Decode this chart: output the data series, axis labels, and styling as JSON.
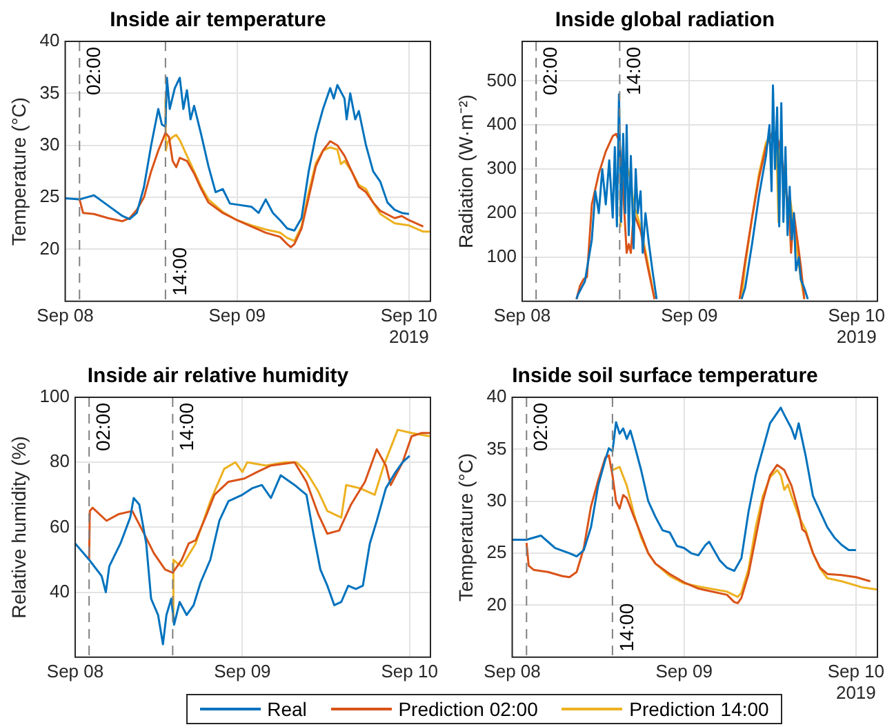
{
  "chart_data": [
    {
      "type": "line",
      "title": "Inside air temperature",
      "ylabel": "Temperature (°C)",
      "xlim": [
        "2019-09-08T00:00",
        "2019-09-10T03:00"
      ],
      "xticks": [
        {
          "value": "2019-09-08",
          "label": "Sep 08"
        },
        {
          "value": "2019-09-09",
          "label": "Sep 09"
        },
        {
          "value": "2019-09-10",
          "label": "Sep 10"
        }
      ],
      "ylim": [
        15,
        40
      ],
      "yticks": [
        20,
        25,
        30,
        35,
        40
      ],
      "grid": true,
      "ref_lines": [
        {
          "axis": "x",
          "value": "2019-09-08T02:00",
          "label": "02:00",
          "color": "#808080",
          "line_style": "dashed"
        },
        {
          "axis": "x",
          "value": "2019-09-08T14:00",
          "label": "14:00",
          "color": "#808080",
          "line_style": "dashed"
        }
      ],
      "annotations": [
        "2019"
      ],
      "series": [
        {
          "color": "#0072bd",
          "x": [
            "2019-09-08T00:00",
            "2019-09-08T02:00",
            "2019-09-08T04:00",
            "2019-09-08T06:00",
            "2019-09-08T08:00",
            "2019-09-08T09:00",
            "2019-09-08T10:00",
            "2019-09-08T11:00",
            "2019-09-08T12:00",
            "2019-09-08T13:00",
            "2019-09-08T13:30",
            "2019-09-08T14:00",
            "2019-09-08T14:12",
            "2019-09-08T14:36",
            "2019-09-08T15:18",
            "2019-09-08T16:00",
            "2019-09-08T16:30",
            "2019-09-08T17:00",
            "2019-09-08T17:30",
            "2019-09-08T18:00",
            "2019-09-08T19:00",
            "2019-09-08T20:00",
            "2019-09-08T21:00",
            "2019-09-08T22:00",
            "2019-09-08T23:00",
            "2019-09-09T00:00",
            "2019-09-09T02:00",
            "2019-09-09T03:00",
            "2019-09-09T04:00",
            "2019-09-09T05:00",
            "2019-09-09T06:00",
            "2019-09-09T07:00",
            "2019-09-09T08:00",
            "2019-09-09T09:00",
            "2019-09-09T10:00",
            "2019-09-09T11:00",
            "2019-09-09T12:00",
            "2019-09-09T13:00",
            "2019-09-09T13:30",
            "2019-09-09T14:00",
            "2019-09-09T15:00",
            "2019-09-09T15:18",
            "2019-09-09T15:48",
            "2019-09-09T16:30",
            "2019-09-09T17:00",
            "2019-09-09T18:00",
            "2019-09-09T19:00",
            "2019-09-09T20:00",
            "2019-09-09T21:00",
            "2019-09-09T22:00",
            "2019-09-09T23:00",
            "2019-09-10T00:00"
          ],
          "values": [
            24.9,
            24.8,
            25.2,
            24.2,
            23.2,
            22.9,
            23.5,
            26,
            30,
            33.5,
            32,
            31.8,
            36.5,
            33.5,
            35.5,
            36.5,
            33.5,
            35.3,
            32.5,
            33.8,
            31,
            28,
            25.5,
            25.8,
            24.4,
            24.3,
            24.1,
            23.5,
            24.8,
            23.5,
            22.8,
            22,
            21.8,
            23,
            27.5,
            31,
            33.5,
            35.5,
            34.5,
            35.8,
            34.5,
            32.5,
            35,
            32.5,
            33.3,
            30,
            27.5,
            26.5,
            24.5,
            23.8,
            23.5,
            23.4
          ]
        },
        {
          "color": "#d95319",
          "x": [
            "2019-09-08T02:00",
            "2019-09-08T02:30",
            "2019-09-08T04:00",
            "2019-09-08T06:00",
            "2019-09-08T08:00",
            "2019-09-08T09:00",
            "2019-09-08T10:00",
            "2019-09-08T11:00",
            "2019-09-08T12:00",
            "2019-09-08T13:00",
            "2019-09-08T14:00",
            "2019-09-08T14:30",
            "2019-09-08T15:00",
            "2019-09-08T15:30",
            "2019-09-08T16:00",
            "2019-09-08T17:00",
            "2019-09-08T18:00",
            "2019-09-08T19:00",
            "2019-09-08T20:00",
            "2019-09-08T22:00",
            "2019-09-09T00:00",
            "2019-09-09T02:00",
            "2019-09-09T04:00",
            "2019-09-09T06:00",
            "2019-09-09T07:00",
            "2019-09-09T07:30",
            "2019-09-09T08:00",
            "2019-09-09T09:00",
            "2019-09-09T10:00",
            "2019-09-09T11:00",
            "2019-09-09T12:00",
            "2019-09-09T13:00",
            "2019-09-09T14:00",
            "2019-09-09T15:00",
            "2019-09-09T16:00",
            "2019-09-09T17:00",
            "2019-09-09T18:00",
            "2019-09-09T19:00",
            "2019-09-09T20:00",
            "2019-09-09T22:00",
            "2019-09-09T23:00",
            "2019-09-10T00:00",
            "2019-09-10T02:00"
          ],
          "values": [
            24.8,
            23.5,
            23.4,
            23,
            22.7,
            23,
            23.8,
            25,
            27.5,
            29.5,
            31.2,
            30.8,
            28.5,
            27.9,
            28.8,
            28.5,
            27.3,
            25.8,
            24.5,
            23.5,
            22.8,
            22.2,
            21.6,
            21.2,
            20.5,
            20.2,
            20.5,
            22,
            25,
            28,
            29.5,
            30.4,
            30,
            29,
            27.5,
            26,
            25.5,
            24.5,
            23.7,
            23,
            23.2,
            22.8,
            22.2
          ]
        },
        {
          "color": "#edb120",
          "x": [
            "2019-09-08T14:00",
            "2019-09-08T14:03",
            "2019-09-08T14:18",
            "2019-09-08T15:00",
            "2019-09-08T15:30",
            "2019-09-08T16:00",
            "2019-09-08T17:00",
            "2019-09-08T18:00",
            "2019-09-08T19:00",
            "2019-09-08T20:00",
            "2019-09-08T22:00",
            "2019-09-09T00:00",
            "2019-09-09T02:00",
            "2019-09-09T04:00",
            "2019-09-09T06:00",
            "2019-09-09T07:00",
            "2019-09-09T08:00",
            "2019-09-09T09:00",
            "2019-09-09T10:00",
            "2019-09-09T11:00",
            "2019-09-09T12:00",
            "2019-09-09T13:00",
            "2019-09-09T14:00",
            "2019-09-09T14:30",
            "2019-09-09T15:00",
            "2019-09-09T16:00",
            "2019-09-09T17:00",
            "2019-09-09T18:00",
            "2019-09-09T19:00",
            "2019-09-09T20:00",
            "2019-09-09T22:00",
            "2019-09-10T00:00",
            "2019-09-10T02:00",
            "2019-09-10T03:00"
          ],
          "values": [
            34.5,
            29.5,
            30.3,
            30.8,
            31,
            30.5,
            29,
            27.5,
            26,
            24.8,
            23.6,
            22.8,
            22.3,
            21.9,
            21.6,
            21.1,
            20.8,
            22.2,
            25.5,
            28.3,
            29.5,
            29.8,
            29.6,
            28.2,
            28.5,
            27.5,
            26.2,
            25.8,
            24.5,
            23.4,
            22.5,
            22.3,
            21.7,
            21.7
          ]
        }
      ]
    },
    {
      "type": "line",
      "title": "Inside global radiation",
      "ylabel": "Radiation (W·m⁻²)",
      "xlim": [
        "2019-09-08T00:00",
        "2019-09-10T03:00"
      ],
      "xticks": [
        {
          "value": "2019-09-08",
          "label": "Sep 08"
        },
        {
          "value": "2019-09-09",
          "label": "Sep 09"
        },
        {
          "value": "2019-09-10",
          "label": "Sep 10"
        }
      ],
      "ylim": [
        0,
        590
      ],
      "yticks": [
        100,
        200,
        300,
        400,
        500
      ],
      "grid": true,
      "ref_lines": [
        {
          "axis": "x",
          "value": "2019-09-08T02:00",
          "label": "02:00",
          "color": "#808080",
          "line_style": "dashed"
        },
        {
          "axis": "x",
          "value": "2019-09-08T14:00",
          "label": "14:00",
          "color": "#808080",
          "line_style": "dashed"
        }
      ],
      "annotations": [
        "2019"
      ],
      "series": [
        {
          "color": "#0072bd",
          "x": [
            "2019-09-08T07:48",
            "2019-09-08T08:00",
            "2019-09-08T09:00",
            "2019-09-08T10:00",
            "2019-09-08T10:30",
            "2019-09-08T11:00",
            "2019-09-08T11:30",
            "2019-09-08T12:00",
            "2019-09-08T12:30",
            "2019-09-08T13:00",
            "2019-09-08T13:18",
            "2019-09-08T13:36",
            "2019-09-08T13:54",
            "2019-09-08T14:12",
            "2019-09-08T14:30",
            "2019-09-08T14:48",
            "2019-09-08T15:00",
            "2019-09-08T15:18",
            "2019-09-08T15:36",
            "2019-09-08T16:00",
            "2019-09-08T16:18",
            "2019-09-08T16:36",
            "2019-09-08T17:00",
            "2019-09-08T17:18",
            "2019-09-08T17:42",
            "2019-09-08T18:12",
            "2019-09-08T18:42",
            "2019-09-08T19:18",
            "2019-09-09T01:00",
            "2019-09-09T07:30",
            "2019-09-09T08:00",
            "2019-09-09T09:00",
            "2019-09-09T10:00",
            "2019-09-09T11:00",
            "2019-09-09T11:30",
            "2019-09-09T11:48",
            "2019-09-09T12:00",
            "2019-09-09T12:18",
            "2019-09-09T12:36",
            "2019-09-09T12:54",
            "2019-09-09T13:12",
            "2019-09-09T13:30",
            "2019-09-09T13:48",
            "2019-09-09T14:06",
            "2019-09-09T14:24",
            "2019-09-09T14:42",
            "2019-09-09T15:00",
            "2019-09-09T15:18",
            "2019-09-09T15:42",
            "2019-09-09T16:00",
            "2019-09-09T16:30",
            "2019-09-09T17:00"
          ],
          "values": [
            5,
            15,
            45,
            140,
            250,
            200,
            300,
            220,
            320,
            190,
            350,
            170,
            470,
            180,
            380,
            200,
            400,
            150,
            330,
            120,
            300,
            200,
            250,
            110,
            200,
            130,
            70,
            5,
            null,
            5,
            30,
            130,
            240,
            330,
            400,
            250,
            490,
            300,
            440,
            170,
            450,
            180,
            350,
            150,
            260,
            140,
            200,
            70,
            100,
            50,
            30,
            5
          ]
        },
        {
          "color": "#d95319",
          "x": [
            "2019-09-08T07:48",
            "2019-09-08T08:18",
            "2019-09-08T08:48",
            "2019-09-08T09:18",
            "2019-09-08T10:00",
            "2019-09-08T11:00",
            "2019-09-08T12:00",
            "2019-09-08T13:00",
            "2019-09-08T13:30",
            "2019-09-08T14:00",
            "2019-09-08T14:30",
            "2019-09-08T15:00",
            "2019-09-08T15:18",
            "2019-09-08T15:36",
            "2019-09-08T16:00",
            "2019-09-08T17:00",
            "2019-09-08T18:00",
            "2019-09-08T19:00",
            "2019-09-09T01:00",
            "2019-09-09T07:12",
            "2019-09-09T08:00",
            "2019-09-09T09:00",
            "2019-09-09T10:00",
            "2019-09-09T11:00",
            "2019-09-09T12:00",
            "2019-09-09T12:30",
            "2019-09-09T13:00",
            "2019-09-09T13:30",
            "2019-09-09T14:00",
            "2019-09-09T14:18",
            "2019-09-09T14:36",
            "2019-09-09T15:00",
            "2019-09-09T16:00",
            "2019-09-09T16:30"
          ],
          "values": [
            5,
            35,
            50,
            55,
            220,
            290,
            340,
            375,
            380,
            360,
            250,
            110,
            130,
            110,
            200,
            160,
            80,
            5,
            null,
            5,
            90,
            190,
            280,
            350,
            385,
            380,
            350,
            300,
            240,
            220,
            110,
            200,
            80,
            5
          ]
        },
        {
          "color": "#edb120",
          "x": [
            "2019-09-08T14:00",
            "2019-09-08T14:06",
            "2019-09-08T14:18",
            "2019-09-08T15:00",
            "2019-09-08T15:30",
            "2019-09-08T16:00",
            "2019-09-08T17:00",
            "2019-09-08T18:00",
            "2019-09-08T19:00",
            "2019-09-09T01:00",
            "2019-09-09T07:30",
            "2019-09-09T08:00",
            "2019-09-09T09:00",
            "2019-09-09T10:00",
            "2019-09-09T11:00",
            "2019-09-09T12:00",
            "2019-09-09T12:30",
            "2019-09-09T12:48",
            "2019-09-09T13:00",
            "2019-09-09T13:30",
            "2019-09-09T14:00",
            "2019-09-09T14:30",
            "2019-09-09T15:00",
            "2019-09-09T16:00",
            "2019-09-09T16:30"
          ],
          "values": [
            170,
            330,
            310,
            310,
            280,
            220,
            170,
            90,
            5,
            null,
            5,
            80,
            190,
            290,
            360,
            385,
            350,
            180,
            350,
            300,
            230,
            230,
            170,
            50,
            5
          ]
        }
      ]
    },
    {
      "type": "line",
      "title": "Inside air relative humidity",
      "ylabel": "Relative humidity (%)",
      "xlim": [
        "2019-09-08T00:00",
        "2019-09-10T03:00"
      ],
      "xticks": [
        {
          "value": "2019-09-08",
          "label": "Sep 08"
        },
        {
          "value": "2019-09-09",
          "label": "Sep 09"
        },
        {
          "value": "2019-09-10",
          "label": "Sep 10"
        }
      ],
      "ylim": [
        20,
        100
      ],
      "yticks": [
        40,
        60,
        80,
        100
      ],
      "grid": true,
      "legend": "bottom",
      "ref_lines": [
        {
          "axis": "x",
          "value": "2019-09-08T02:00",
          "label": "02:00",
          "color": "#808080",
          "line_style": "dashed"
        },
        {
          "axis": "x",
          "value": "2019-09-08T14:00",
          "label": "14:00",
          "color": "#808080",
          "line_style": "dashed"
        }
      ],
      "series": [
        {
          "name": "Real",
          "color": "#0072bd",
          "x": [
            "2019-09-08T00:00",
            "2019-09-08T02:00",
            "2019-09-08T03:48",
            "2019-09-08T04:24",
            "2019-09-08T04:54",
            "2019-09-08T06:30",
            "2019-09-08T07:54",
            "2019-09-08T08:24",
            "2019-09-08T09:12",
            "2019-09-08T10:12",
            "2019-09-08T10:54",
            "2019-09-08T11:54",
            "2019-09-08T12:36",
            "2019-09-08T13:06",
            "2019-09-08T13:48",
            "2019-09-08T14:12",
            "2019-09-08T15:00",
            "2019-09-08T16:00",
            "2019-09-08T17:00",
            "2019-09-08T18:00",
            "2019-09-08T19:24",
            "2019-09-08T20:42",
            "2019-09-08T22:00",
            "2019-09-09T00:00",
            "2019-09-09T01:24",
            "2019-09-09T02:48",
            "2019-09-09T04:06",
            "2019-09-09T05:30",
            "2019-09-09T07:30",
            "2019-09-09T09:12",
            "2019-09-09T10:12",
            "2019-09-09T11:12",
            "2019-09-09T12:12",
            "2019-09-09T13:12",
            "2019-09-09T14:12",
            "2019-09-09T15:12",
            "2019-09-09T16:18",
            "2019-09-09T17:18",
            "2019-09-09T18:18",
            "2019-09-09T19:18",
            "2019-09-09T20:36",
            "2019-09-09T22:00",
            "2019-09-09T23:00",
            "2019-09-10T00:00"
          ],
          "values": [
            55,
            50,
            45,
            40,
            48,
            55,
            63,
            69,
            67,
            55,
            38,
            33,
            24,
            33,
            38,
            30,
            37,
            33,
            36,
            43,
            50,
            62,
            68,
            70,
            72,
            73,
            69,
            76,
            73,
            70,
            58,
            47,
            42,
            36,
            37,
            42,
            41,
            42,
            55,
            62,
            72,
            77,
            80,
            82
          ]
        },
        {
          "name": "Prediction 02:00",
          "color": "#d95319",
          "x": [
            "2019-09-08T02:00",
            "2019-09-08T02:06",
            "2019-09-08T02:30",
            "2019-09-08T04:30",
            "2019-09-08T06:12",
            "2019-09-08T08:12",
            "2019-09-08T09:54",
            "2019-09-08T11:18",
            "2019-09-08T12:54",
            "2019-09-08T14:00",
            "2019-09-08T15:18",
            "2019-09-08T16:18",
            "2019-09-08T17:18",
            "2019-09-08T18:42",
            "2019-09-08T20:00",
            "2019-09-08T22:00",
            "2019-09-09T00:18",
            "2019-09-09T02:06",
            "2019-09-09T04:06",
            "2019-09-09T07:30",
            "2019-09-09T09:12",
            "2019-09-09T10:54",
            "2019-09-09T12:12",
            "2019-09-09T13:54",
            "2019-09-09T15:36",
            "2019-09-09T17:36",
            "2019-09-09T19:18",
            "2019-09-09T20:36",
            "2019-09-09T21:18",
            "2019-09-09T23:00",
            "2019-09-10T00:18",
            "2019-09-10T01:42",
            "2019-09-10T02:54"
          ],
          "values": [
            50,
            65,
            66,
            62,
            64,
            65,
            58,
            52,
            47,
            46,
            50,
            55,
            56,
            63,
            70,
            74,
            75,
            77,
            79,
            80,
            74,
            64,
            58,
            59,
            67,
            74,
            84,
            79,
            73,
            80,
            88,
            89,
            89
          ]
        },
        {
          "name": "Prediction 14:00",
          "color": "#edb120",
          "x": [
            "2019-09-08T14:00",
            "2019-09-08T14:06",
            "2019-09-08T14:36",
            "2019-09-08T15:18",
            "2019-09-08T17:18",
            "2019-09-08T19:24",
            "2019-09-08T21:24",
            "2019-09-08T23:00",
            "2019-09-09T00:00",
            "2019-09-09T00:42",
            "2019-09-09T03:24",
            "2019-09-09T06:06",
            "2019-09-09T07:48",
            "2019-09-09T09:12",
            "2019-09-09T10:54",
            "2019-09-09T12:12",
            "2019-09-09T14:12",
            "2019-09-09T14:54",
            "2019-09-09T16:54",
            "2019-09-09T19:00",
            "2019-09-09T20:18",
            "2019-09-09T22:18",
            "2019-09-10T00:18",
            "2019-09-10T02:54"
          ],
          "values": [
            31,
            50,
            49,
            48,
            55,
            68,
            78,
            80,
            77,
            80,
            79,
            80,
            80,
            77,
            71,
            65,
            63,
            73,
            72,
            70,
            79,
            90,
            89,
            88
          ]
        }
      ]
    },
    {
      "type": "line",
      "title": "Inside soil surface temperature",
      "ylabel": "Temperature (°C)",
      "xlim": [
        "2019-09-08T00:00",
        "2019-09-10T03:00"
      ],
      "xticks": [
        {
          "value": "2019-09-08",
          "label": "Sep 08"
        },
        {
          "value": "2019-09-09",
          "label": "Sep 09"
        },
        {
          "value": "2019-09-10",
          "label": "Sep 10"
        }
      ],
      "ylim": [
        15,
        40
      ],
      "yticks": [
        20,
        25,
        30,
        35,
        40
      ],
      "grid": true,
      "ref_lines": [
        {
          "axis": "x",
          "value": "2019-09-08T02:00",
          "label": "02:00",
          "color": "#808080",
          "line_style": "dashed"
        },
        {
          "axis": "x",
          "value": "2019-09-08T14:00",
          "label": "14:00",
          "color": "#808080",
          "line_style": "dashed"
        }
      ],
      "annotations": [
        "2019"
      ],
      "series": [
        {
          "color": "#0072bd",
          "x": [
            "2019-09-08T00:00",
            "2019-09-08T02:00",
            "2019-09-08T04:00",
            "2019-09-08T05:00",
            "2019-09-08T06:00",
            "2019-09-08T08:00",
            "2019-09-08T09:00",
            "2019-09-08T10:00",
            "2019-09-08T11:00",
            "2019-09-08T12:00",
            "2019-09-08T13:00",
            "2019-09-08T13:30",
            "2019-09-08T14:00",
            "2019-09-08T14:30",
            "2019-09-08T15:00",
            "2019-09-08T15:30",
            "2019-09-08T16:00",
            "2019-09-08T16:30",
            "2019-09-08T17:00",
            "2019-09-08T18:00",
            "2019-09-08T19:00",
            "2019-09-08T20:00",
            "2019-09-08T21:00",
            "2019-09-08T22:00",
            "2019-09-08T23:00",
            "2019-09-09T00:00",
            "2019-09-09T01:00",
            "2019-09-09T02:00",
            "2019-09-09T03:00",
            "2019-09-09T03:30",
            "2019-09-09T04:00",
            "2019-09-09T05:00",
            "2019-09-09T06:00",
            "2019-09-09T07:00",
            "2019-09-09T08:00",
            "2019-09-09T09:00",
            "2019-09-09T10:00",
            "2019-09-09T11:00",
            "2019-09-09T12:00",
            "2019-09-09T13:00",
            "2019-09-09T13:30",
            "2019-09-09T14:00",
            "2019-09-09T15:00",
            "2019-09-09T15:30",
            "2019-09-09T16:00",
            "2019-09-09T17:00",
            "2019-09-09T18:00",
            "2019-09-09T19:00",
            "2019-09-09T20:00",
            "2019-09-09T21:00",
            "2019-09-09T22:00",
            "2019-09-09T23:00",
            "2019-09-10T00:00"
          ],
          "values": [
            26.3,
            26.3,
            26.7,
            26.1,
            25.5,
            25,
            24.7,
            25.3,
            27.5,
            31.5,
            34,
            35.1,
            34.8,
            37.6,
            36.5,
            37,
            36,
            36.8,
            35.6,
            33,
            30,
            28.5,
            27.2,
            27,
            25.7,
            25.5,
            25,
            24.8,
            25.8,
            26.1,
            25.5,
            24.3,
            23.6,
            23.3,
            24.5,
            29,
            32.5,
            35,
            37.5,
            38.5,
            39,
            38.3,
            37,
            36,
            37.5,
            34.3,
            30.5,
            29,
            27.5,
            26.5,
            25.8,
            25.3,
            25.3
          ]
        },
        {
          "color": "#d95319",
          "x": [
            "2019-09-08T02:00",
            "2019-09-08T02:18",
            "2019-09-08T03:00",
            "2019-09-08T05:00",
            "2019-09-08T07:00",
            "2019-09-08T08:00",
            "2019-09-08T09:00",
            "2019-09-08T10:00",
            "2019-09-08T11:00",
            "2019-09-08T12:00",
            "2019-09-08T13:00",
            "2019-09-08T13:30",
            "2019-09-08T14:00",
            "2019-09-08T14:30",
            "2019-09-08T15:00",
            "2019-09-08T15:30",
            "2019-09-08T16:00",
            "2019-09-08T17:00",
            "2019-09-08T18:00",
            "2019-09-08T19:00",
            "2019-09-08T20:00",
            "2019-09-08T22:00",
            "2019-09-09T00:00",
            "2019-09-09T02:00",
            "2019-09-09T06:00",
            "2019-09-09T07:00",
            "2019-09-09T07:30",
            "2019-09-09T08:00",
            "2019-09-09T09:00",
            "2019-09-09T10:00",
            "2019-09-09T11:00",
            "2019-09-09T12:00",
            "2019-09-09T13:00",
            "2019-09-09T14:00",
            "2019-09-09T15:00",
            "2019-09-09T16:00",
            "2019-09-09T16:30",
            "2019-09-09T17:00",
            "2019-09-09T18:00",
            "2019-09-09T19:00",
            "2019-09-09T20:00",
            "2019-09-09T22:00",
            "2019-09-10T00:00",
            "2019-09-10T02:00"
          ],
          "values": [
            26,
            23.8,
            23.4,
            23.2,
            22.8,
            22.7,
            23.2,
            25.5,
            29.5,
            32,
            34.2,
            34.4,
            32.5,
            30,
            29.3,
            30.6,
            30.3,
            28.5,
            26.8,
            25,
            24,
            23,
            22.2,
            21.6,
            21,
            20.3,
            20.2,
            20.7,
            23,
            26.5,
            30,
            32.5,
            33.5,
            33,
            31.5,
            29,
            27.3,
            27,
            25,
            23.6,
            23,
            22.9,
            22.7,
            22.3
          ]
        },
        {
          "color": "#edb120",
          "x": [
            "2019-09-08T14:00",
            "2019-09-08T15:00",
            "2019-09-08T16:00",
            "2019-09-08T17:00",
            "2019-09-08T18:00",
            "2019-09-08T19:00",
            "2019-09-08T20:00",
            "2019-09-08T22:00",
            "2019-09-09T00:00",
            "2019-09-09T02:00",
            "2019-09-09T06:00",
            "2019-09-09T07:30",
            "2019-09-09T08:00",
            "2019-09-09T09:00",
            "2019-09-09T10:00",
            "2019-09-09T11:00",
            "2019-09-09T12:00",
            "2019-09-09T13:00",
            "2019-09-09T13:30",
            "2019-09-09T14:00",
            "2019-09-09T14:30",
            "2019-09-09T15:00",
            "2019-09-09T16:00",
            "2019-09-09T17:00",
            "2019-09-09T18:00",
            "2019-09-09T19:00",
            "2019-09-09T20:00",
            "2019-09-09T22:00",
            "2019-09-10T01:00",
            "2019-09-10T03:00"
          ],
          "values": [
            33,
            33.3,
            31.5,
            28.8,
            26.5,
            25,
            24,
            22.8,
            22.1,
            21.8,
            21.3,
            20.8,
            21.2,
            23.5,
            27.5,
            30.5,
            32.3,
            33,
            32.5,
            31.1,
            31.6,
            30.5,
            28.6,
            27.2,
            25,
            23.5,
            22.6,
            22.3,
            21.7,
            21.5
          ]
        }
      ]
    }
  ]
}
